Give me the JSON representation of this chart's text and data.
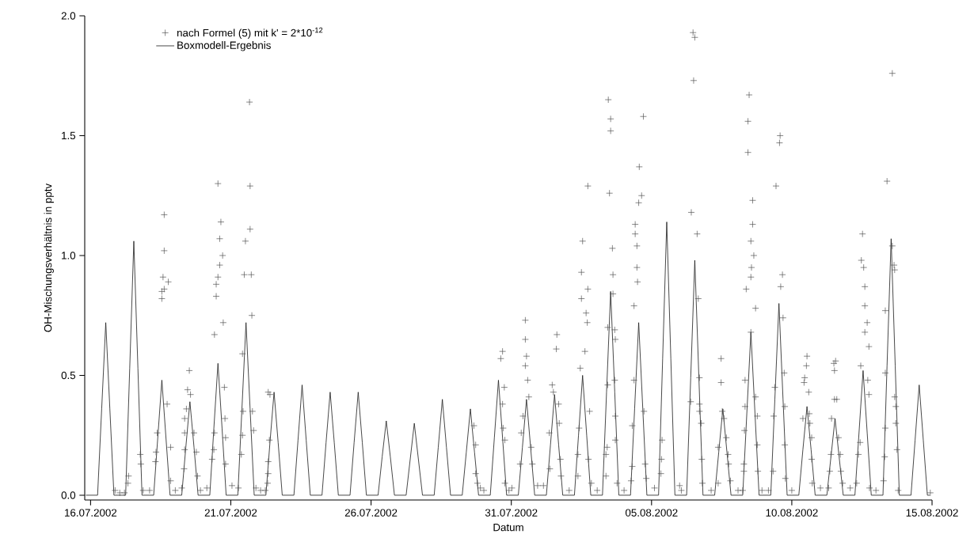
{
  "chart_data": {
    "type": "line",
    "xlabel": "Datum",
    "ylabel": "OH-Mischungsverhältnis in pptv",
    "xlim": [
      "2002-07-15T19:00",
      "2002-08-15T00:00"
    ],
    "ylim": [
      -0.02,
      2.0
    ],
    "xticks": [
      {
        "value": "2002-07-16",
        "label": "16.07.2002"
      },
      {
        "value": "2002-07-21",
        "label": "21.07.2002"
      },
      {
        "value": "2002-07-26",
        "label": "26.07.2002"
      },
      {
        "value": "2002-07-31",
        "label": "31.07.2002"
      },
      {
        "value": "2002-08-05",
        "label": "05.08.2002"
      },
      {
        "value": "2002-08-10",
        "label": "10.08.2002"
      },
      {
        "value": "2002-08-15",
        "label": "15.08.2002"
      }
    ],
    "yticks": [
      {
        "value": 0,
        "label": "0.0"
      },
      {
        "value": 0.5,
        "label": "0.5"
      },
      {
        "value": 1.0,
        "label": "1.0"
      },
      {
        "value": 1.5,
        "label": "1.5"
      },
      {
        "value": 2.0,
        "label": "2.0"
      }
    ],
    "legend": "top left",
    "series": [
      {
        "name": "nach Formel (5) mit k' = 2*10$^{-12}$",
        "type": "scatter",
        "marker": "cross",
        "color": "#4d4d4d",
        "x": [
          "2002-07-16T21:00",
          "2002-07-17T01:00",
          "2002-07-17T05:00",
          "2002-07-17T08:00",
          "2002-07-17T08:30",
          "2002-07-17T18:30",
          "2002-07-17T19:00",
          "2002-07-17T21:00",
          "2002-07-18T02:30",
          "2002-07-18T07:30",
          "2002-07-18T08:00",
          "2002-07-18T09:00",
          "2002-07-18T13:00",
          "2002-07-18T13:00",
          "2002-07-18T14:00",
          "2002-07-18T15:00",
          "2002-07-18T15:00",
          "2002-07-18T15:00",
          "2002-07-18T18:30",
          "2002-07-18T17:30",
          "2002-07-18T20:30",
          "2002-07-18T20:30",
          "2002-07-19T00:30",
          "2002-07-19T06:00",
          "2002-07-19T08:00",
          "2002-07-19T08:30",
          "2002-07-19T08:30",
          "2002-07-19T08:30",
          "2002-07-19T10:00",
          "2002-07-19T11:00",
          "2002-07-19T12:30",
          "2002-07-19T13:30",
          "2002-07-19T16:30",
          "2002-07-19T18:30",
          "2002-07-19T19:30",
          "2002-07-19T22:00",
          "2002-07-20T03:30",
          "2002-07-20T08:00",
          "2002-07-20T09:30",
          "2002-07-20T10:00",
          "2002-07-20T10:00",
          "2002-07-20T11:30",
          "2002-07-20T11:30",
          "2002-07-20T13:00",
          "2002-07-20T14:30",
          "2002-07-20T14:30",
          "2002-07-20T15:30",
          "2002-07-20T13:00",
          "2002-07-20T17:00",
          "2002-07-20T17:30",
          "2002-07-20T18:30",
          "2002-07-20T19:00",
          "2002-07-20T19:30",
          "2002-07-20T19:30",
          "2002-07-21T01:00",
          "2002-07-21T06:30",
          "2002-07-21T09:00",
          "2002-07-21T10:00",
          "2002-07-21T10:30",
          "2002-07-21T10:00",
          "2002-07-21T12:30",
          "2002-07-21T11:30",
          "2002-07-21T17:30",
          "2002-07-21T16:30",
          "2002-07-21T16:30",
          "2002-07-21T16:00",
          "2002-07-21T18:00",
          "2002-07-21T18:30",
          "2002-07-21T19:30",
          "2002-07-21T21:30",
          "2002-07-22T01:30",
          "2002-07-22T05:30",
          "2002-07-22T07:30",
          "2002-07-22T08:00",
          "2002-07-22T08:00",
          "2002-07-22T09:00",
          "2002-07-22T08:00",
          "2002-07-22T09:30",
          "2002-07-29T16:00",
          "2002-07-29T17:30",
          "2002-07-29T17:30",
          "2002-07-29T19:00",
          "2002-07-29T21:30",
          "2002-07-30T00:30",
          "2002-07-30T15:00",
          "2002-07-30T16:30",
          "2002-07-30T18:00",
          "2002-07-30T16:30",
          "2002-07-30T17:00",
          "2002-07-30T18:30",
          "2002-07-30T18:30",
          "2002-07-30T22:00",
          "2002-07-31T00:30",
          "2002-07-31T07:30",
          "2002-07-31T08:30",
          "2002-07-31T10:00",
          "2002-07-31T12:00",
          "2002-07-31T13:00",
          "2002-07-31T12:00",
          "2002-07-31T12:00",
          "2002-07-31T14:00",
          "2002-07-31T15:00",
          "2002-07-31T17:00",
          "2002-07-31T18:00",
          "2002-07-31T22:30",
          "2002-08-01T03:30",
          "2002-08-01T08:30",
          "2002-08-01T09:00",
          "2002-08-01T11:00",
          "2002-08-01T12:00",
          "2002-08-01T14:30",
          "2002-08-01T15:00",
          "2002-08-01T16:30",
          "2002-08-01T17:00",
          "2002-08-01T18:00",
          "2002-08-01T18:30",
          "2002-08-02T01:30",
          "2002-08-02T09:00",
          "2002-08-02T09:00",
          "2002-08-02T10:00",
          "2002-08-02T11:00",
          "2002-08-02T12:00",
          "2002-08-02T12:00",
          "2002-08-02T13:00",
          "2002-08-02T15:00",
          "2002-08-02T16:00",
          "2002-08-02T17:00",
          "2002-08-02T17:30",
          "2002-08-02T17:30",
          "2002-08-02T19:00",
          "2002-08-02T18:00",
          "2002-08-02T20:30",
          "2002-08-03T01:30",
          "2002-08-03T09:00",
          "2002-08-03T09:00",
          "2002-08-03T10:00",
          "2002-08-03T10:30",
          "2002-08-03T10:30",
          "2002-08-03T12:00",
          "2002-08-03T11:00",
          "2002-08-03T13:00",
          "2002-08-03T13:00",
          "2002-08-03T14:30",
          "2002-08-03T15:00",
          "2002-08-03T15:00",
          "2002-08-03T16:30",
          "2002-08-03T17:00",
          "2002-08-03T16:30",
          "2002-08-03T17:00",
          "2002-08-03T17:00",
          "2002-08-03T18:30",
          "2002-08-04T00:30",
          "2002-08-04T06:30",
          "2002-08-04T07:30",
          "2002-08-04T07:30",
          "2002-08-04T09:00",
          "2002-08-04T09:00",
          "2002-08-04T10:00",
          "2002-08-04T10:00",
          "2002-08-04T11:30",
          "2002-08-04T11:30",
          "2002-08-04T12:00",
          "2002-08-04T13:00",
          "2002-08-04T13:30",
          "2002-08-04T15:30",
          "2002-08-04T17:00",
          "2002-08-04T17:30",
          "2002-08-04T18:30",
          "2002-08-04T19:30",
          "2002-08-05T02:30",
          "2002-08-05T08:00",
          "2002-08-05T08:30",
          "2002-08-05T09:00",
          "2002-08-06T00:00",
          "2002-08-06T01:30",
          "2002-08-06T09:30",
          "2002-08-06T10:00",
          "2002-08-06T11:30",
          "2002-08-06T13:00",
          "2002-08-06T12:00",
          "2002-08-06T15:00",
          "2002-08-06T16:00",
          "2002-08-06T17:00",
          "2002-08-06T17:00",
          "2002-08-06T17:00",
          "2002-08-06T18:30",
          "2002-08-06T19:00",
          "2002-08-06T19:30",
          "2002-08-07T03:00",
          "2002-08-07T09:00",
          "2002-08-07T09:00",
          "2002-08-07T11:30",
          "2002-08-07T11:30",
          "2002-08-07T12:30",
          "2002-08-07T14:00",
          "2002-08-07T16:00",
          "2002-08-07T17:30",
          "2002-08-07T18:00",
          "2002-08-07T19:30",
          "2002-08-08T02:00",
          "2002-08-08T06:00",
          "2002-08-08T07:00",
          "2002-08-08T07:00",
          "2002-08-08T07:30",
          "2002-08-08T08:00",
          "2002-08-08T08:00",
          "2002-08-08T09:00",
          "2002-08-08T10:30",
          "2002-08-08T10:30",
          "2002-08-08T11:30",
          "2002-08-08T13:00",
          "2002-08-08T13:00",
          "2002-08-08T13:30",
          "2002-08-08T14:30",
          "2002-08-08T14:30",
          "2002-08-08T15:30",
          "2002-08-08T17:00",
          "2002-08-08T13:00",
          "2002-08-08T17:00",
          "2002-08-08T18:30",
          "2002-08-08T18:30",
          "2002-08-08T19:00",
          "2002-08-08T22:30",
          "2002-08-09T04:00",
          "2002-08-09T08:00",
          "2002-08-09T08:30",
          "2002-08-09T09:30",
          "2002-08-09T10:30",
          "2002-08-09T13:30",
          "2002-08-09T14:00",
          "2002-08-09T14:30",
          "2002-08-09T16:00",
          "2002-08-09T16:30",
          "2002-08-09T17:30",
          "2002-08-09T18:00",
          "2002-08-09T18:00",
          "2002-08-09T18:30",
          "2002-08-10T00:00",
          "2002-08-10T09:30",
          "2002-08-10T10:30",
          "2002-08-10T11:00",
          "2002-08-10T12:30",
          "2002-08-10T13:00",
          "2002-08-10T14:30",
          "2002-08-10T15:00",
          "2002-08-10T15:30",
          "2002-08-10T17:00",
          "2002-08-10T17:00",
          "2002-08-10T17:30",
          "2002-08-11T00:30",
          "2002-08-11T07:30",
          "2002-08-11T08:30",
          "2002-08-11T09:30",
          "2002-08-11T10:00",
          "2002-08-11T12:00",
          "2002-08-11T12:30",
          "2002-08-11T13:30",
          "2002-08-11T12:30",
          "2002-08-11T14:30",
          "2002-08-11T16:00",
          "2002-08-11T17:30",
          "2002-08-11T18:00",
          "2002-08-11T19:30",
          "2002-08-12T02:00",
          "2002-08-12T07:30",
          "2002-08-12T09:00",
          "2002-08-12T10:30",
          "2002-08-12T11:00",
          "2002-08-12T12:30",
          "2002-08-12T11:30",
          "2002-08-12T13:30",
          "2002-08-12T14:30",
          "2002-08-12T14:30",
          "2002-08-12T14:30",
          "2002-08-12T16:30",
          "2002-08-12T18:00",
          "2002-08-12T17:00",
          "2002-08-12T18:00",
          "2002-08-12T18:30",
          "2002-08-13T00:00",
          "2002-08-13T06:30",
          "2002-08-13T07:30",
          "2002-08-13T08:00",
          "2002-08-13T08:00",
          "2002-08-13T08:00",
          "2002-08-13T09:30",
          "2002-08-13T14:00",
          "2002-08-13T14:00",
          "2002-08-13T15:30",
          "2002-08-13T16:00",
          "2002-08-13T16:00",
          "2002-08-13T17:00",
          "2002-08-13T17:00",
          "2002-08-13T18:00",
          "2002-08-13T19:00",
          "2002-08-14T22:30"
        ],
        "values": [
          0.02,
          0.01,
          0.01,
          0.05,
          0.08,
          0.17,
          0.13,
          0.02,
          0.02,
          0.14,
          0.18,
          0.26,
          0.82,
          0.85,
          0.91,
          0.86,
          1.02,
          1.17,
          0.89,
          0.38,
          0.2,
          0.06,
          0.02,
          0.03,
          0.11,
          0.19,
          0.26,
          0.32,
          0.36,
          0.44,
          0.52,
          0.42,
          0.26,
          0.18,
          0.08,
          0.02,
          0.03,
          0.15,
          0.19,
          0.26,
          0.67,
          0.83,
          0.88,
          0.91,
          0.96,
          1.07,
          1.14,
          1.3,
          1.0,
          0.72,
          0.45,
          0.32,
          0.24,
          0.13,
          0.04,
          0.03,
          0.17,
          0.25,
          0.35,
          0.59,
          1.06,
          0.92,
          0.92,
          1.11,
          1.29,
          1.64,
          0.75,
          0.35,
          0.27,
          0.03,
          0.02,
          0.02,
          0.05,
          0.09,
          0.14,
          0.23,
          0.43,
          0.42,
          0.29,
          0.21,
          0.09,
          0.05,
          0.03,
          0.02,
          0.57,
          0.6,
          0.45,
          0.38,
          0.28,
          0.23,
          0.05,
          0.02,
          0.03,
          0.13,
          0.26,
          0.33,
          0.54,
          0.58,
          0.65,
          0.73,
          0.48,
          0.41,
          0.2,
          0.13,
          0.04,
          0.04,
          0.26,
          0.11,
          0.46,
          0.43,
          0.61,
          0.67,
          0.38,
          0.3,
          0.15,
          0.08,
          0.02,
          0.08,
          0.17,
          0.28,
          0.53,
          0.82,
          0.93,
          1.06,
          0.6,
          0.76,
          0.72,
          0.86,
          1.29,
          0.35,
          0.15,
          0.05,
          0.02,
          0.08,
          0.17,
          0.2,
          0.46,
          0.7,
          1.26,
          1.65,
          1.57,
          1.52,
          1.03,
          0.92,
          0.84,
          0.69,
          0.65,
          0.48,
          0.33,
          0.23,
          0.05,
          0.02,
          0.06,
          0.12,
          0.29,
          0.48,
          0.79,
          1.13,
          1.09,
          1.04,
          0.95,
          0.89,
          1.22,
          1.37,
          1.25,
          1.58,
          0.35,
          0.13,
          0.07,
          0.03,
          0.09,
          0.15,
          0.23,
          0.04,
          0.02,
          0.39,
          1.18,
          1.93,
          1.91,
          1.73,
          1.09,
          0.82,
          0.49,
          0.38,
          0.35,
          0.3,
          0.15,
          0.05,
          0.02,
          0.05,
          0.2,
          0.57,
          0.47,
          0.35,
          0.32,
          0.24,
          0.17,
          0.13,
          0.06,
          0.02,
          0.02,
          0.1,
          0.13,
          0.27,
          0.37,
          0.48,
          0.86,
          1.43,
          1.56,
          1.67,
          1.06,
          0.91,
          0.95,
          1.13,
          1.23,
          1.0,
          0.78,
          0.68,
          0.41,
          0.33,
          0.21,
          0.1,
          0.02,
          0.02,
          0.1,
          0.33,
          0.45,
          1.29,
          1.47,
          1.5,
          0.87,
          0.92,
          0.74,
          0.51,
          0.37,
          0.21,
          0.07,
          0.02,
          0.32,
          0.47,
          0.49,
          0.54,
          0.58,
          0.43,
          0.34,
          0.3,
          0.24,
          0.15,
          0.05,
          0.03,
          0.03,
          0.1,
          0.17,
          0.32,
          0.55,
          0.52,
          0.56,
          0.4,
          0.4,
          0.24,
          0.17,
          0.1,
          0.05,
          0.03,
          0.05,
          0.17,
          0.22,
          0.54,
          1.09,
          0.98,
          0.95,
          0.87,
          0.79,
          0.68,
          0.72,
          0.62,
          0.48,
          0.42,
          0.03,
          0.02,
          0.06,
          0.16,
          0.28,
          0.51,
          0.77,
          1.31,
          1.76,
          1.04,
          0.96,
          0.94,
          0.41,
          0.37,
          0.3,
          0.19,
          0.02,
          0.01
        ]
      },
      {
        "name": "Boxmodell-Ergebnis",
        "marker": "none",
        "color": "#1a1a1a",
        "x": [
          "2002-07-15T20:00",
          "2002-07-16T06:00",
          "2002-07-16T09:30",
          "2002-07-16T13:00",
          "2002-07-16T16:30",
          "2002-07-16T20:00",
          "2002-07-17T06:00",
          "2002-07-17T09:30",
          "2002-07-17T13:00",
          "2002-07-17T16:30",
          "2002-07-17T20:00",
          "2002-07-18T06:00",
          "2002-07-18T09:30",
          "2002-07-18T13:00",
          "2002-07-18T16:30",
          "2002-07-18T20:00",
          "2002-07-19T06:00",
          "2002-07-19T09:30",
          "2002-07-19T13:00",
          "2002-07-19T16:30",
          "2002-07-19T20:00",
          "2002-07-20T06:00",
          "2002-07-20T09:30",
          "2002-07-20T13:00",
          "2002-07-20T16:30",
          "2002-07-20T20:00",
          "2002-07-21T06:00",
          "2002-07-21T09:30",
          "2002-07-21T13:00",
          "2002-07-21T16:30",
          "2002-07-21T20:00",
          "2002-07-22T06:00",
          "2002-07-22T09:30",
          "2002-07-22T13:00",
          "2002-07-22T16:30",
          "2002-07-22T20:00",
          "2002-07-23T06:00",
          "2002-07-23T09:30",
          "2002-07-23T13:00",
          "2002-07-23T16:30",
          "2002-07-23T20:00",
          "2002-07-24T06:00",
          "2002-07-24T09:30",
          "2002-07-24T13:00",
          "2002-07-24T16:30",
          "2002-07-24T20:00",
          "2002-07-25T06:00",
          "2002-07-25T09:30",
          "2002-07-25T13:00",
          "2002-07-25T16:30",
          "2002-07-25T20:00",
          "2002-07-26T06:00",
          "2002-07-26T09:30",
          "2002-07-26T13:00",
          "2002-07-26T16:30",
          "2002-07-26T20:00",
          "2002-07-27T06:00",
          "2002-07-27T09:30",
          "2002-07-27T13:00",
          "2002-07-27T16:30",
          "2002-07-27T20:00",
          "2002-07-28T06:00",
          "2002-07-28T09:30",
          "2002-07-28T13:00",
          "2002-07-28T16:30",
          "2002-07-28T20:00",
          "2002-07-29T06:00",
          "2002-07-29T09:30",
          "2002-07-29T13:00",
          "2002-07-29T16:30",
          "2002-07-29T20:00",
          "2002-07-30T06:00",
          "2002-07-30T09:30",
          "2002-07-30T13:00",
          "2002-07-30T16:30",
          "2002-07-30T20:00",
          "2002-07-31T06:00",
          "2002-07-31T09:30",
          "2002-07-31T13:00",
          "2002-07-31T16:30",
          "2002-07-31T20:00",
          "2002-08-01T06:00",
          "2002-08-01T09:30",
          "2002-08-01T13:00",
          "2002-08-01T16:30",
          "2002-08-01T20:00",
          "2002-08-02T06:00",
          "2002-08-02T09:30",
          "2002-08-02T13:00",
          "2002-08-02T16:30",
          "2002-08-02T20:00",
          "2002-08-03T06:00",
          "2002-08-03T09:30",
          "2002-08-03T13:00",
          "2002-08-03T16:30",
          "2002-08-03T20:00",
          "2002-08-04T06:00",
          "2002-08-04T09:30",
          "2002-08-04T13:00",
          "2002-08-04T16:30",
          "2002-08-04T20:00",
          "2002-08-05T06:00",
          "2002-08-05T09:30",
          "2002-08-05T13:00",
          "2002-08-05T16:30",
          "2002-08-05T20:00",
          "2002-08-06T06:00",
          "2002-08-06T09:30",
          "2002-08-06T13:00",
          "2002-08-06T16:30",
          "2002-08-06T20:00",
          "2002-08-07T06:00",
          "2002-08-07T09:30",
          "2002-08-07T13:00",
          "2002-08-07T16:30",
          "2002-08-07T20:00",
          "2002-08-08T06:00",
          "2002-08-08T09:30",
          "2002-08-08T13:00",
          "2002-08-08T16:30",
          "2002-08-08T20:00",
          "2002-08-09T06:00",
          "2002-08-09T09:30",
          "2002-08-09T13:00",
          "2002-08-09T16:30",
          "2002-08-09T20:00",
          "2002-08-10T06:00",
          "2002-08-10T09:30",
          "2002-08-10T13:00",
          "2002-08-10T16:30",
          "2002-08-10T20:00",
          "2002-08-11T06:00",
          "2002-08-11T09:30",
          "2002-08-11T13:00",
          "2002-08-11T16:30",
          "2002-08-11T20:00",
          "2002-08-12T06:00",
          "2002-08-12T09:30",
          "2002-08-12T13:00",
          "2002-08-12T16:30",
          "2002-08-12T20:00",
          "2002-08-13T06:00",
          "2002-08-13T09:30",
          "2002-08-13T13:00",
          "2002-08-13T16:30",
          "2002-08-13T20:00",
          "2002-08-14T06:00",
          "2002-08-14T09:30",
          "2002-08-14T13:00",
          "2002-08-14T16:30",
          "2002-08-14T20:00",
          "2002-08-14T22:00"
        ],
        "values": [
          0,
          0,
          0.36,
          0.72,
          0.36,
          0,
          0,
          0.53,
          1.06,
          0.53,
          0,
          0,
          0.24,
          0.48,
          0.24,
          0,
          0,
          0.2,
          0.39,
          0.2,
          0,
          0,
          0.28,
          0.55,
          0.28,
          0,
          0,
          0.36,
          0.72,
          0.36,
          0,
          0,
          0.22,
          0.43,
          0.22,
          0,
          0,
          0.23,
          0.46,
          0.23,
          0,
          0,
          0.22,
          0.43,
          0.22,
          0,
          0,
          0.22,
          0.43,
          0.22,
          0,
          0,
          0.16,
          0.31,
          0.16,
          0,
          0,
          0.15,
          0.3,
          0.15,
          0,
          0,
          0.2,
          0.4,
          0.2,
          0,
          0,
          0.18,
          0.36,
          0.18,
          0,
          0,
          0.24,
          0.48,
          0.24,
          0,
          0,
          0.2,
          0.4,
          0.2,
          0,
          0,
          0.21,
          0.42,
          0.21,
          0,
          0,
          0.25,
          0.5,
          0.25,
          0,
          0,
          0.43,
          0.85,
          0.43,
          0,
          0,
          0.36,
          0.72,
          0.36,
          0,
          0,
          0.57,
          1.14,
          0.57,
          0,
          0,
          0.49,
          0.98,
          0.49,
          0,
          0,
          0.18,
          0.36,
          0.18,
          0,
          0,
          0.34,
          0.68,
          0.34,
          0,
          0,
          0.4,
          0.8,
          0.4,
          0,
          0,
          0.19,
          0.37,
          0.19,
          0,
          0,
          0.16,
          0.32,
          0.16,
          0,
          0,
          0.26,
          0.52,
          0.26,
          0,
          0,
          0.54,
          1.07,
          0.54,
          0,
          0,
          0.23,
          0.46,
          0.23,
          0,
          0
        ]
      }
    ]
  }
}
